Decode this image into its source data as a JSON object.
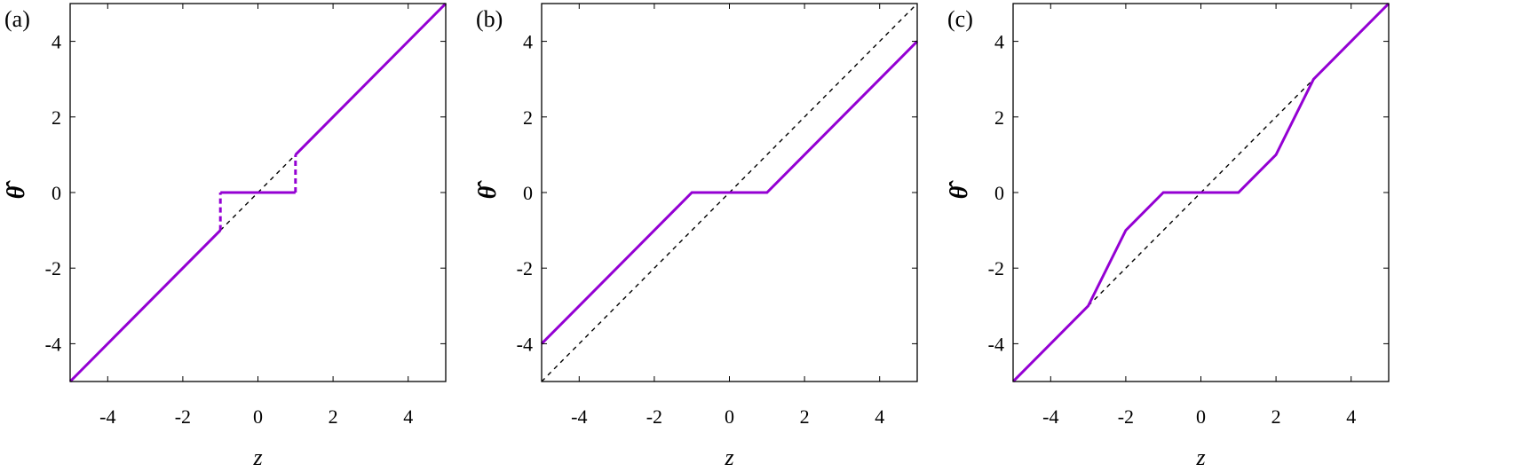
{
  "chart_data": [
    {
      "type": "line",
      "panel_label": "(a)",
      "xlabel": "z",
      "ylabel": "θ̂",
      "xlim": [
        -5,
        5
      ],
      "ylim": [
        -5,
        5
      ],
      "xticks": [
        -4,
        -2,
        0,
        2,
        4
      ],
      "yticks": [
        -4,
        -2,
        0,
        2,
        4
      ],
      "grid": false,
      "series": [
        {
          "style": "dashed",
          "color": "#000000",
          "x": [
            -5,
            5
          ],
          "y": [
            -5,
            5
          ]
        },
        {
          "style": "solid",
          "color": "#9400d3",
          "x": [
            -5,
            -1
          ],
          "y": [
            -5,
            -1
          ]
        },
        {
          "style": "solid",
          "color": "#9400d3",
          "x": [
            -1,
            1
          ],
          "y": [
            0,
            0
          ]
        },
        {
          "style": "solid",
          "color": "#9400d3",
          "x": [
            1,
            5
          ],
          "y": [
            1,
            5
          ]
        },
        {
          "style": "dashed",
          "color": "#9400d3",
          "x": [
            -1,
            -1
          ],
          "y": [
            -1,
            0
          ]
        },
        {
          "style": "dashed",
          "color": "#9400d3",
          "x": [
            1,
            1
          ],
          "y": [
            0,
            1
          ]
        }
      ]
    },
    {
      "type": "line",
      "panel_label": "(b)",
      "xlabel": "z",
      "ylabel": "θ̂",
      "xlim": [
        -5,
        5
      ],
      "ylim": [
        -5,
        5
      ],
      "xticks": [
        -4,
        -2,
        0,
        2,
        4
      ],
      "yticks": [
        -4,
        -2,
        0,
        2,
        4
      ],
      "grid": false,
      "series": [
        {
          "style": "dashed",
          "color": "#000000",
          "x": [
            -5,
            5
          ],
          "y": [
            -5,
            5
          ]
        },
        {
          "style": "solid",
          "color": "#9400d3",
          "x": [
            -5,
            -1,
            1,
            5
          ],
          "y": [
            -4,
            0,
            0,
            4
          ]
        }
      ]
    },
    {
      "type": "line",
      "panel_label": "(c)",
      "xlabel": "z",
      "ylabel": "θ̂",
      "xlim": [
        -5,
        5
      ],
      "ylim": [
        -5,
        5
      ],
      "xticks": [
        -4,
        -2,
        0,
        2,
        4
      ],
      "yticks": [
        -4,
        -2,
        0,
        2,
        4
      ],
      "grid": false,
      "series": [
        {
          "style": "dashed",
          "color": "#000000",
          "x": [
            -5,
            5
          ],
          "y": [
            -5,
            5
          ]
        },
        {
          "style": "solid",
          "color": "#9400d3",
          "x": [
            -5,
            -3,
            -2,
            -1,
            1,
            2,
            3,
            5
          ],
          "y": [
            -5,
            -3,
            -1,
            0,
            0,
            1,
            3,
            5
          ]
        }
      ]
    }
  ]
}
